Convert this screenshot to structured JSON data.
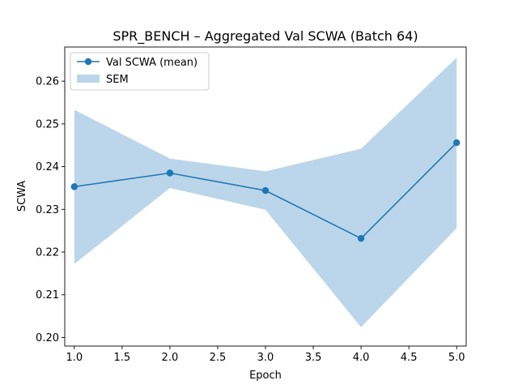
{
  "chart_data": {
    "type": "line",
    "title": "SPR_BENCH – Aggregated Val SCWA (Batch 64)",
    "xlabel": "Epoch",
    "ylabel": "SCWA",
    "xlim": [
      0.9,
      5.1
    ],
    "ylim": [
      0.198,
      0.268
    ],
    "xticks": [
      "1.0",
      "1.5",
      "2.0",
      "2.5",
      "3.0",
      "3.5",
      "4.0",
      "4.5",
      "5.0"
    ],
    "xtick_values": [
      1.0,
      1.5,
      2.0,
      2.5,
      3.0,
      3.5,
      4.0,
      4.5,
      5.0
    ],
    "yticks": [
      "0.20",
      "0.21",
      "0.22",
      "0.23",
      "0.24",
      "0.25",
      "0.26"
    ],
    "ytick_values": [
      0.2,
      0.21,
      0.22,
      0.23,
      0.24,
      0.25,
      0.26
    ],
    "x": [
      1,
      2,
      3,
      4,
      5
    ],
    "series": [
      {
        "name": "Val SCWA (mean)",
        "values": [
          0.2353,
          0.2385,
          0.2344,
          0.2232,
          0.2456
        ],
        "color": "#1f77b4"
      }
    ],
    "band": {
      "name": "SEM",
      "lower": [
        0.2172,
        0.235,
        0.2299,
        0.2024,
        0.2256
      ],
      "upper": [
        0.2533,
        0.2419,
        0.2389,
        0.2442,
        0.2655
      ],
      "color": "#bbd6ea"
    },
    "legend": "upper-left",
    "grid": false
  }
}
